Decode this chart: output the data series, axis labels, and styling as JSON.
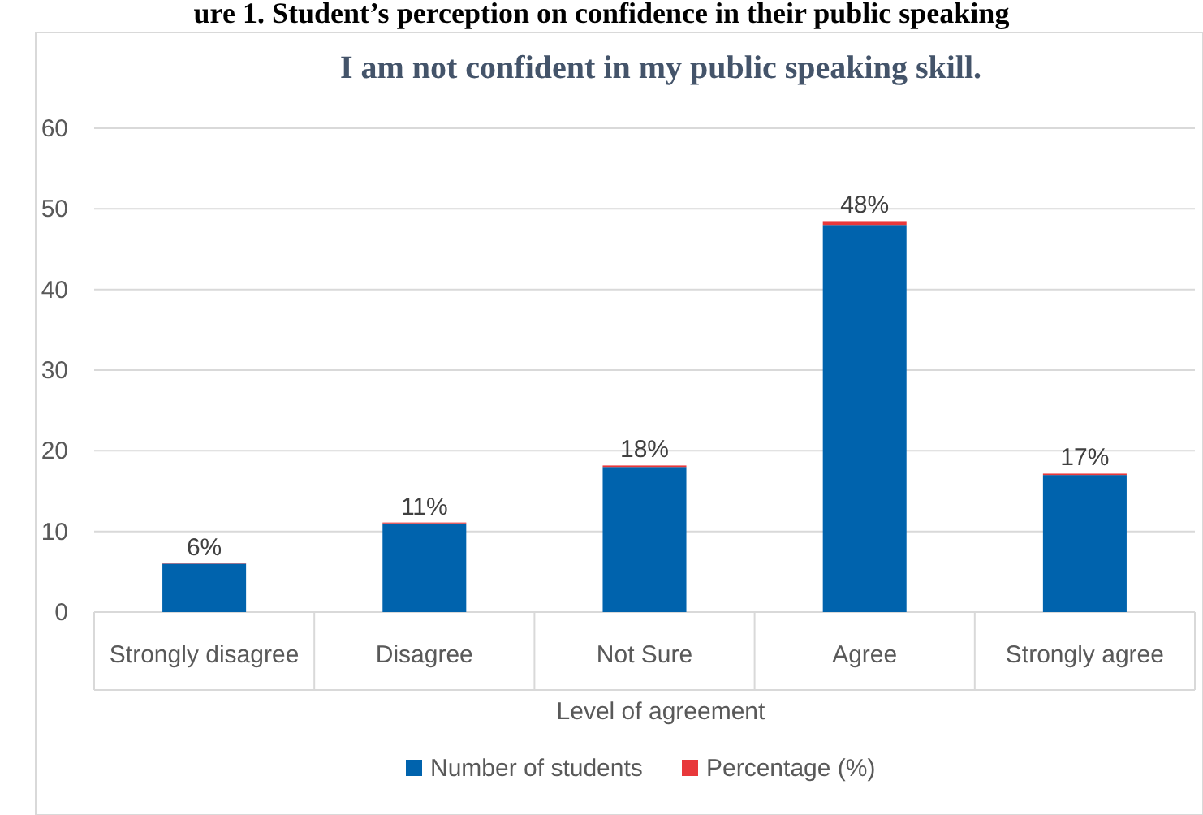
{
  "chart_data": {
    "type": "bar",
    "title": "I am not confident in my public speaking skill.",
    "xlabel": "Level of agreement",
    "annotations": [
      "ure 1. Student’s perception on confidence in their public speaking"
    ],
    "categories": [
      "Strongly disagree",
      "Disagree",
      "Not Sure",
      "Agree",
      "Strongly agree"
    ],
    "stacked": true,
    "series": [
      {
        "name": "Number of students",
        "color": "#0063ad",
        "values": [
          6,
          11,
          18,
          48,
          17
        ]
      },
      {
        "name": "Percentage (%)",
        "color": "#e8383b",
        "values": [
          0.06,
          0.11,
          0.18,
          0.48,
          0.17
        ],
        "value_labels": [
          "6%",
          "11%",
          "18%",
          "48%",
          "17%"
        ]
      }
    ],
    "ylim": [
      0,
      60
    ],
    "yticks": [
      0,
      10,
      20,
      30,
      40,
      50,
      60
    ],
    "grid": "y",
    "legend": "bottom"
  }
}
